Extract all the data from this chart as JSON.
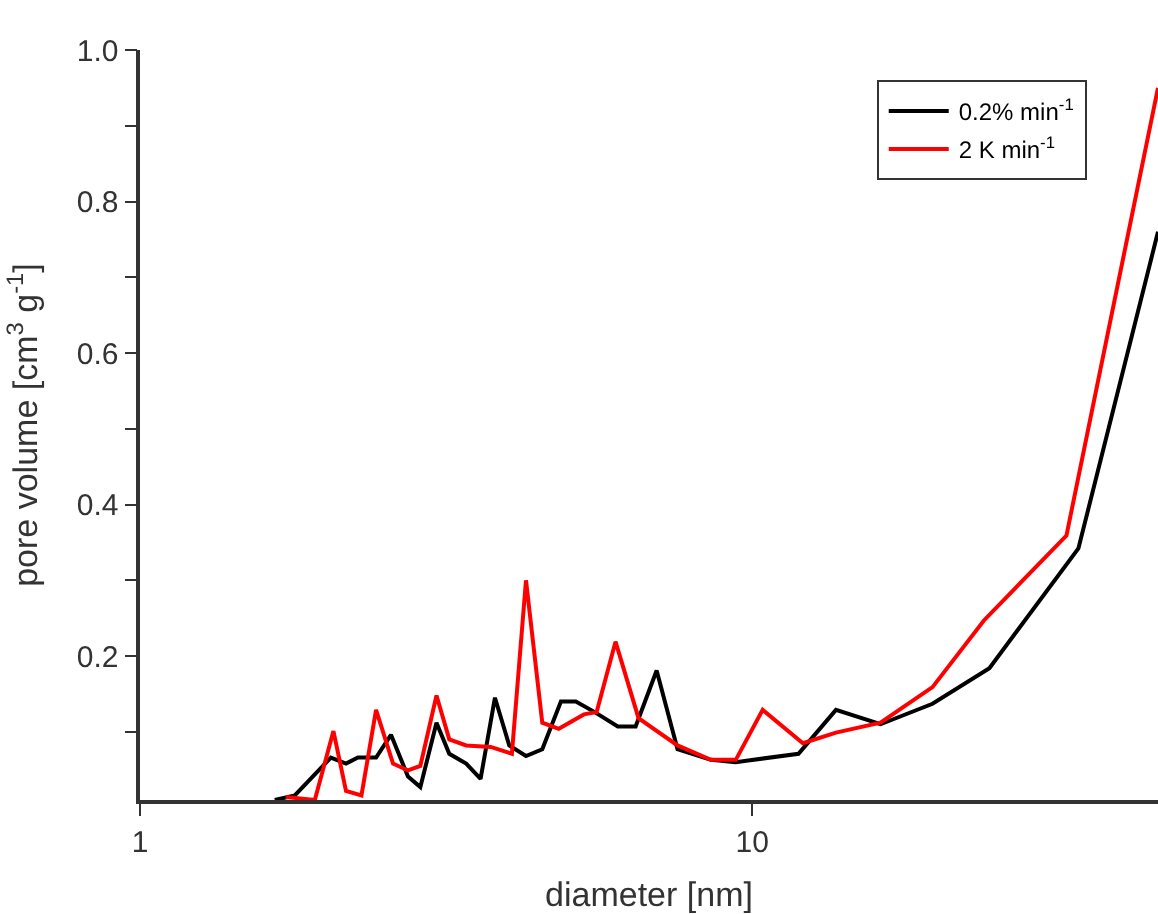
{
  "chart_data": {
    "type": "line",
    "xlabel": "diameter [nm]",
    "ylabel": "pore volume [cm$^{3}$ g$^{-1}$]",
    "log": "x",
    "xlim": [
      1,
      46
    ],
    "xticks": [
      1,
      10
    ],
    "ylim": [
      0.01,
      1.0
    ],
    "yticks": [
      {
        "value": 0.1,
        "label": null
      },
      0.2,
      {
        "value": 0.3,
        "label": null
      },
      0.4,
      {
        "value": 0.5,
        "label": null
      },
      0.6,
      {
        "value": 0.7,
        "label": null
      },
      0.8,
      {
        "value": 0.9,
        "label": null
      },
      {
        "value": 1.0,
        "label": "1.0"
      }
    ],
    "legend": "top right",
    "marker": "none",
    "line_style": "solid",
    "series": [
      {
        "name": "0.2% min$^{-1}$",
        "color": "#000000",
        "x": [
          1.66,
          1.79,
          2.05,
          2.17,
          2.27,
          2.43,
          2.57,
          2.74,
          2.87,
          3.05,
          3.2,
          3.41,
          3.6,
          3.8,
          4.01,
          4.27,
          4.54,
          4.87,
          5.15,
          5.53,
          6.03,
          6.45,
          6.98,
          7.55,
          8.56,
          9.4,
          11.9,
          13.7,
          16.2,
          19.7,
          24.4,
          34.1,
          46
        ],
        "values": [
          0.01,
          0.016,
          0.066,
          0.058,
          0.066,
          0.066,
          0.096,
          0.041,
          0.027,
          0.112,
          0.071,
          0.058,
          0.038,
          0.145,
          0.082,
          0.068,
          0.077,
          0.14,
          0.14,
          0.126,
          0.107,
          0.107,
          0.181,
          0.077,
          0.063,
          0.06,
          0.071,
          0.129,
          0.11,
          0.137,
          0.184,
          0.342,
          0.76
        ]
      },
      {
        "name": "2 K min$^{-1}$",
        "color": "#ff0000",
        "x": [
          1.73,
          1.93,
          2.07,
          2.17,
          2.3,
          2.43,
          2.59,
          2.74,
          2.87,
          3.05,
          3.2,
          3.41,
          3.74,
          4.05,
          4.27,
          4.54,
          4.83,
          5.31,
          5.57,
          5.98,
          6.52,
          7.55,
          8.56,
          9.4,
          10.4,
          12.1,
          13.7,
          16.2,
          19.7,
          23.9,
          32.6,
          46
        ],
        "values": [
          0.014,
          0.01,
          0.101,
          0.022,
          0.016,
          0.129,
          0.058,
          0.049,
          0.055,
          0.148,
          0.09,
          0.082,
          0.08,
          0.071,
          0.3,
          0.112,
          0.104,
          0.123,
          0.126,
          0.219,
          0.118,
          0.082,
          0.063,
          0.063,
          0.129,
          0.085,
          0.099,
          0.112,
          0.159,
          0.247,
          0.359,
          0.95
        ]
      }
    ]
  }
}
